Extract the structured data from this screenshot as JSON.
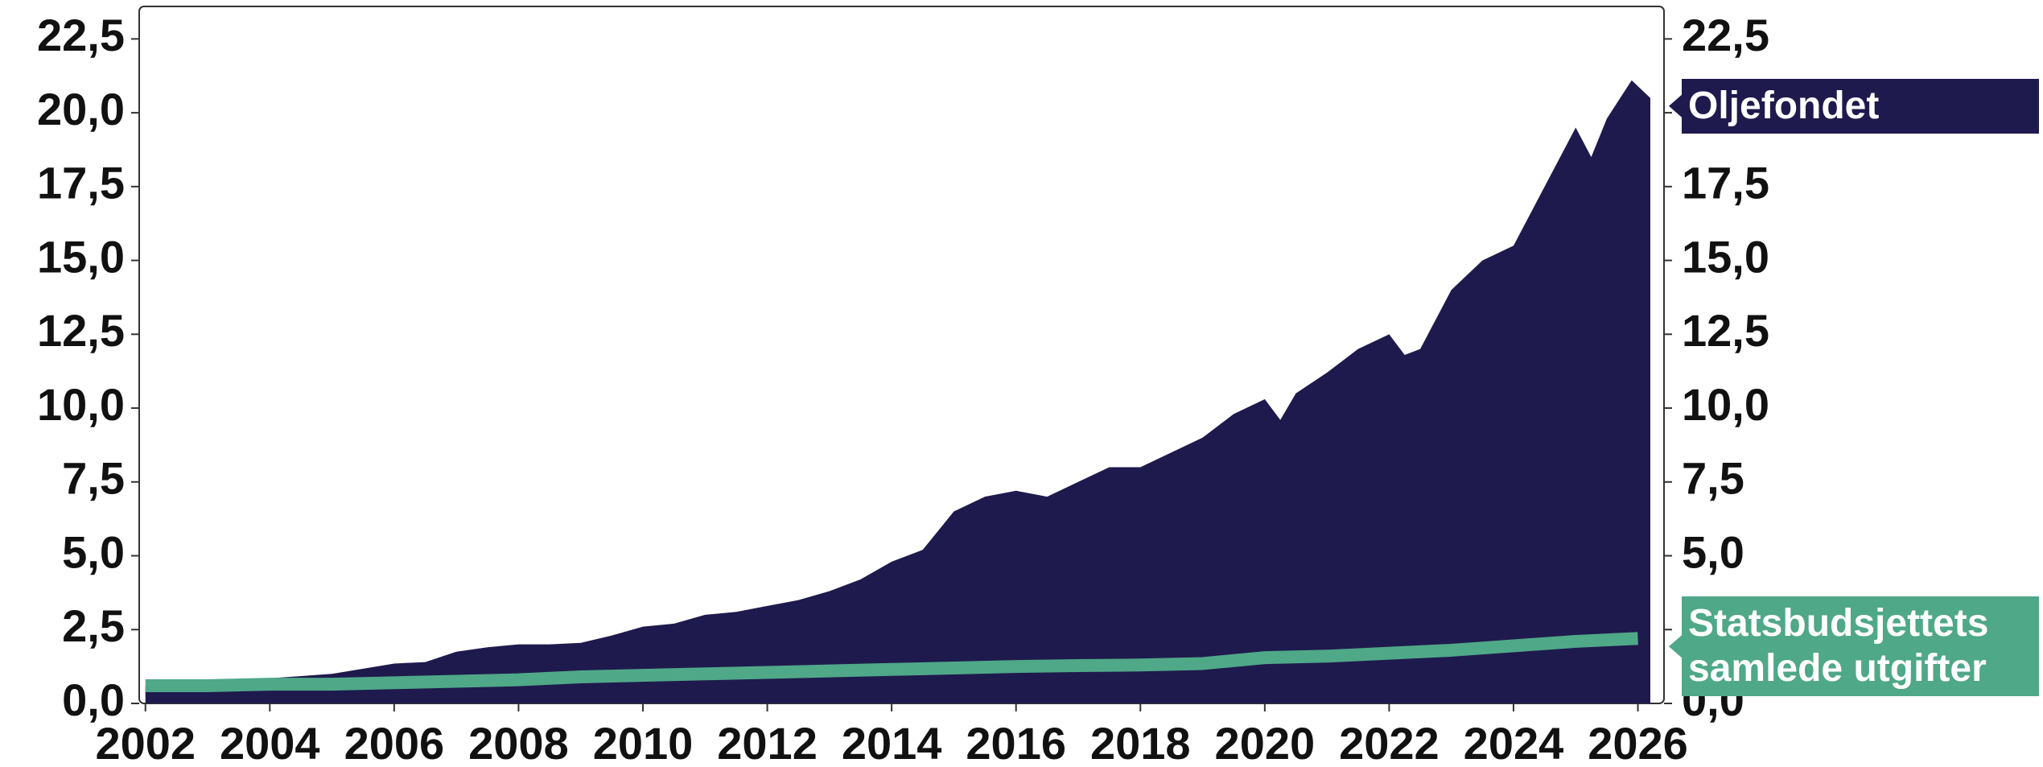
{
  "chart_data": {
    "type": "area",
    "xlim": [
      2001.9,
      2026.42
    ],
    "xticks": [
      2002,
      2004,
      2006,
      2008,
      2010,
      2012,
      2014,
      2016,
      2018,
      2020,
      2022,
      2024,
      2026
    ],
    "ylim": [
      0,
      23.6
    ],
    "yticks": [
      {
        "value": 0,
        "label": "0,0"
      },
      {
        "value": 2.5,
        "label": "2,5"
      },
      {
        "value": 5,
        "label": "5,0"
      },
      {
        "value": 7.5,
        "label": "7,5"
      },
      {
        "value": 10,
        "label": "10,0"
      },
      {
        "value": 12.5,
        "label": "12,5"
      },
      {
        "value": 15,
        "label": "15,0"
      },
      {
        "value": 17.5,
        "label": "17,5"
      },
      {
        "value": 20,
        "label": "20,0"
      },
      {
        "value": 22.5,
        "label": "22,5"
      }
    ],
    "y2lim": [
      0,
      23.6
    ],
    "y2ticks": [
      {
        "value": 0,
        "label": "0,0"
      },
      {
        "value": 2.5,
        "label": "2,5"
      },
      {
        "value": 5,
        "label": "5,0"
      },
      {
        "value": 7.5,
        "label": "7,5"
      },
      {
        "value": 10,
        "label": "10,0"
      },
      {
        "value": 12.5,
        "label": "12,5"
      },
      {
        "value": 15,
        "label": "15,0"
      },
      {
        "value": 17.5,
        "label": "17,5"
      },
      {
        "value": 20,
        "label": "20,0"
      },
      {
        "value": 22.5,
        "label": "22,5"
      }
    ],
    "series": [
      {
        "name": "Oljefondet",
        "type": "area",
        "color": "#1f1a4d",
        "x": [
          2002.0,
          2003.0,
          2004.0,
          2005.0,
          2006.0,
          2006.5,
          2007.0,
          2007.5,
          2008.0,
          2008.5,
          2009.0,
          2009.5,
          2010.0,
          2010.5,
          2011.0,
          2011.5,
          2012.0,
          2012.5,
          2013.0,
          2013.5,
          2014.0,
          2014.5,
          2015.0,
          2015.5,
          2016.0,
          2016.5,
          2017.0,
          2017.5,
          2018.0,
          2018.5,
          2019.0,
          2019.5,
          2020.0,
          2020.25,
          2020.5,
          2021.0,
          2021.5,
          2022.0,
          2022.25,
          2022.5,
          2023.0,
          2023.5,
          2024.0,
          2024.5,
          2025.0,
          2025.25,
          2025.5,
          2025.9,
          2026.2
        ],
        "values": [
          0.6,
          0.65,
          0.85,
          1.0,
          1.35,
          1.4,
          1.75,
          1.9,
          2.0,
          2.0,
          2.05,
          2.3,
          2.6,
          2.7,
          3.0,
          3.1,
          3.3,
          3.5,
          3.8,
          4.2,
          4.8,
          5.2,
          6.5,
          7.0,
          7.2,
          7.0,
          7.5,
          8.0,
          8.0,
          8.5,
          9.0,
          9.8,
          10.3,
          9.6,
          10.5,
          11.2,
          12.0,
          12.5,
          11.8,
          12.0,
          14.0,
          15.0,
          15.5,
          17.5,
          19.5,
          18.5,
          19.8,
          21.1,
          20.5
        ]
      },
      {
        "name": "Statsbudsjettets samlede utgifter",
        "type": "line",
        "color": "#4fa888",
        "axis": "y2",
        "x": [
          2002,
          2003,
          2004,
          2005,
          2006,
          2007,
          2008,
          2009,
          2010,
          2011,
          2012,
          2013,
          2014,
          2015,
          2016,
          2017,
          2018,
          2019,
          2020,
          2021,
          2022,
          2023,
          2024,
          2025,
          2026
        ],
        "values": [
          0.6,
          0.6,
          0.65,
          0.65,
          0.7,
          0.75,
          0.8,
          0.9,
          0.95,
          1.0,
          1.05,
          1.1,
          1.15,
          1.2,
          1.25,
          1.28,
          1.3,
          1.35,
          1.55,
          1.6,
          1.7,
          1.8,
          1.95,
          2.1,
          2.2
        ]
      }
    ]
  }
}
